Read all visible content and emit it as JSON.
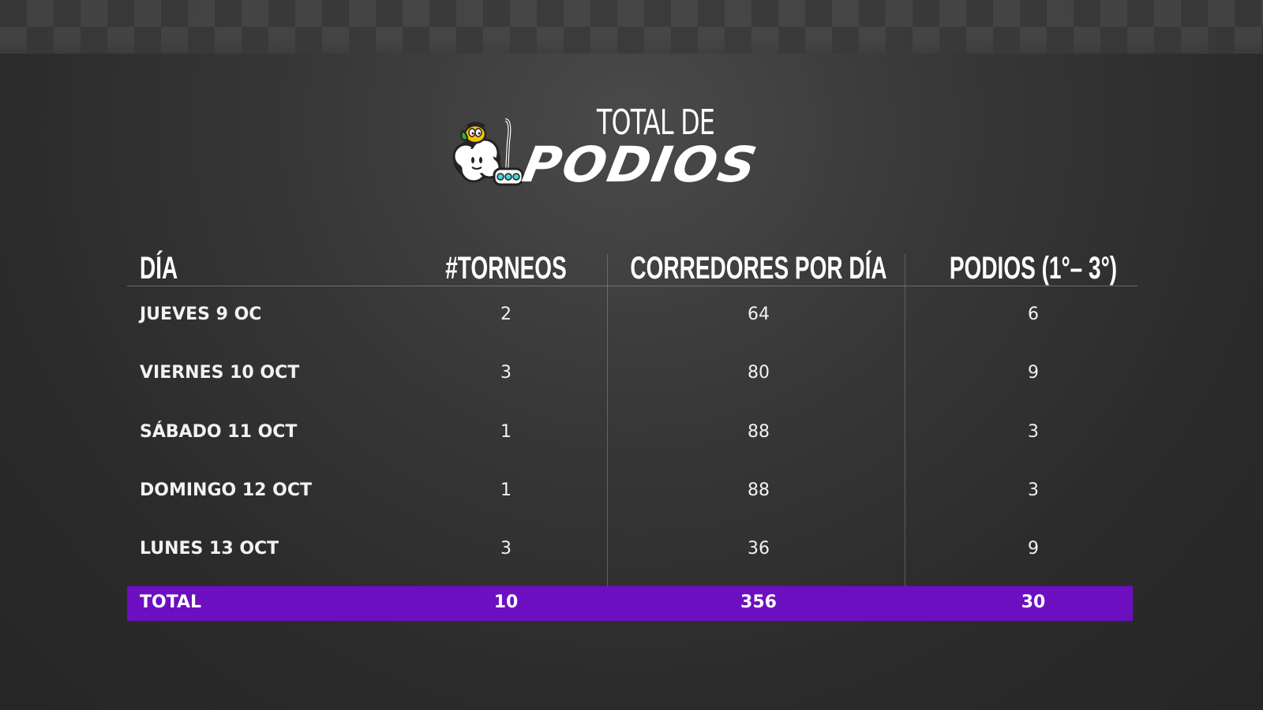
{
  "header": {
    "title_line1": "TOTAL DE",
    "title_line2": "PODIOS",
    "mascot_icon": "cloud-mascot-icon"
  },
  "table": {
    "columns": [
      "DÍA",
      "#TORNEOS",
      "CORREDORES POR DÍA",
      "PODIOS (1°– 3°)"
    ],
    "rows": [
      {
        "day": "JUEVES 9 OC",
        "torneos": "2",
        "corredores": "64",
        "podios": "6"
      },
      {
        "day": "VIERNES 10 OCT",
        "torneos": "3",
        "corredores": "80",
        "podios": "9"
      },
      {
        "day": "SÁBADO 11 OCT",
        "torneos": "1",
        "corredores": "88",
        "podios": "3"
      },
      {
        "day": "DOMINGO 12 OCT",
        "torneos": "1",
        "corredores": "88",
        "podios": "3"
      },
      {
        "day": "LUNES 13 OCT",
        "torneos": "3",
        "corredores": "36",
        "podios": "9"
      }
    ],
    "total": {
      "label": "TOTAL",
      "torneos": "10",
      "corredores": "356",
      "podios": "30"
    }
  },
  "colors": {
    "total_row": "#6c0fc0",
    "background": "#2b2b2b",
    "text": "#ffffff",
    "mascot_accent": "#3fd7e0"
  }
}
